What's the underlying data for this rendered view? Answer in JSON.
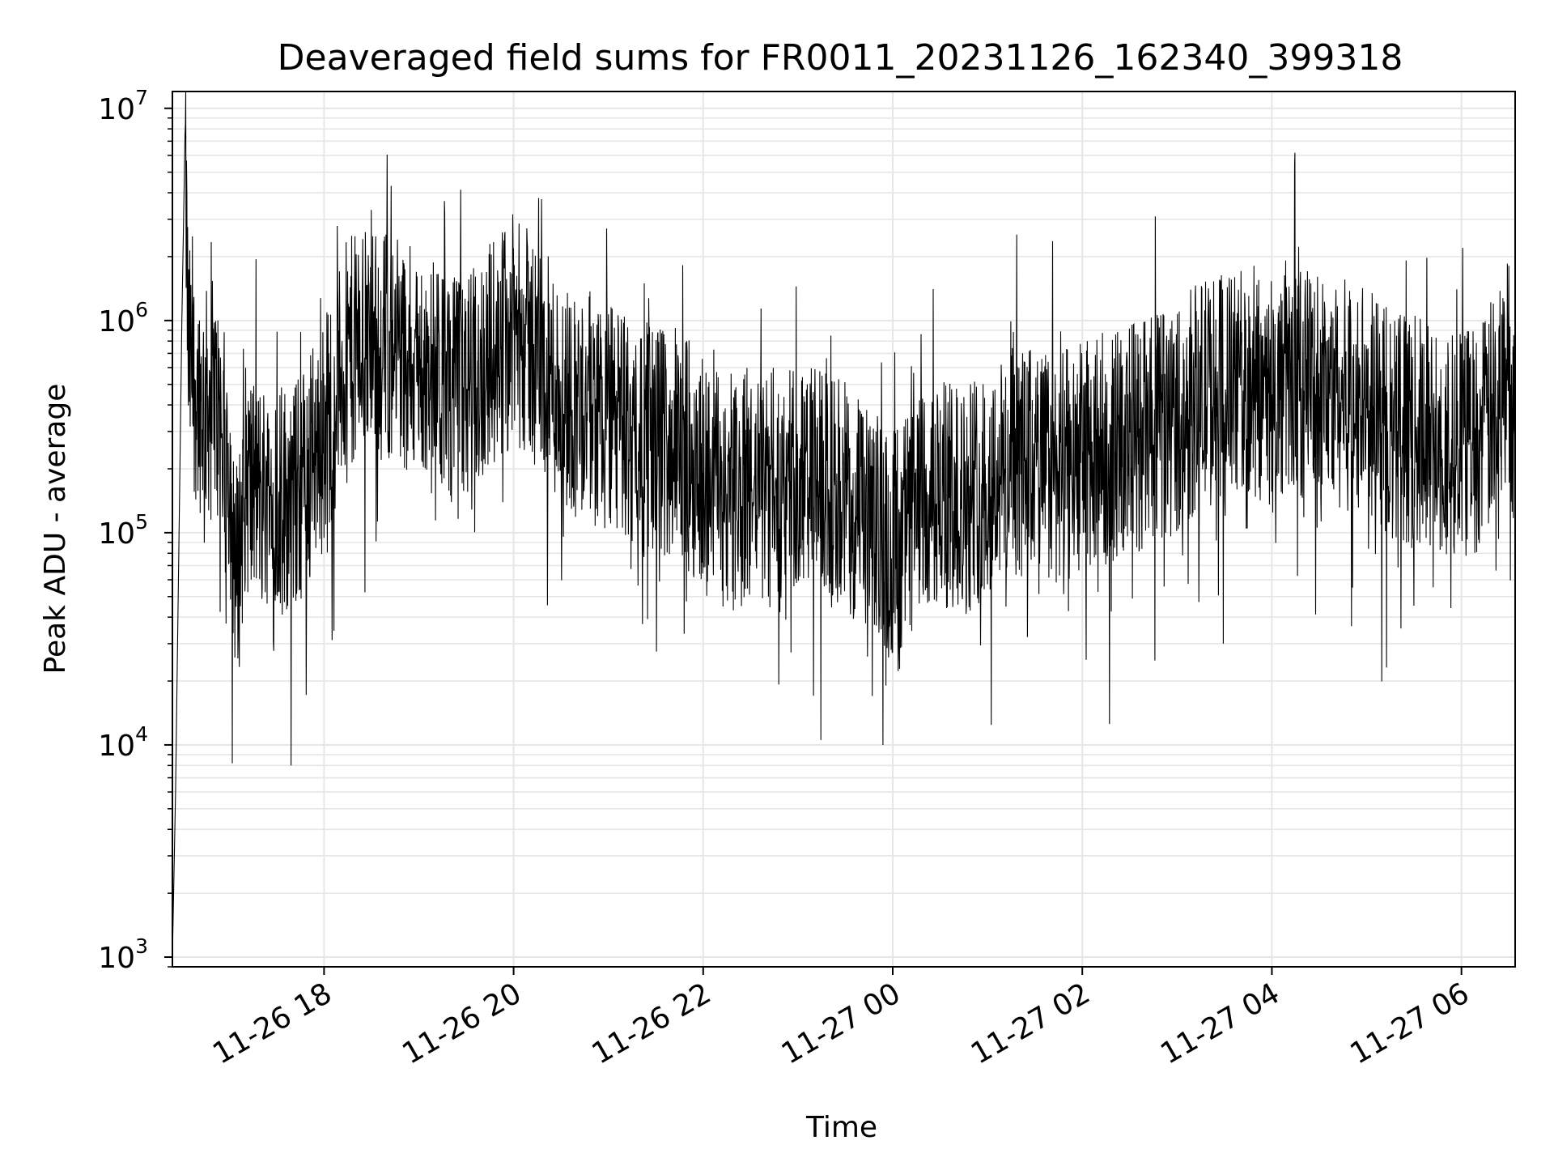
{
  "chart_data": {
    "type": "line",
    "title": "Deaveraged field sums for FR0011_20231126_162340_399318",
    "xlabel": "Time",
    "ylabel": "Peak ADU - average",
    "yscale": "log",
    "ylim": [
      900,
      12000000
    ],
    "xlim": [
      "2023-11-26 16:24",
      "2023-11-27 06:34"
    ],
    "grid": true,
    "line_color": "#000000",
    "grid_color": "#e6e6e6",
    "x_ticks": [
      {
        "value": "2023-11-26 18:00",
        "label": "11-26 18"
      },
      {
        "value": "2023-11-26 20:00",
        "label": "11-26 20"
      },
      {
        "value": "2023-11-26 22:00",
        "label": "11-26 22"
      },
      {
        "value": "2023-11-27 00:00",
        "label": "11-27 00"
      },
      {
        "value": "2023-11-27 02:00",
        "label": "11-27 02"
      },
      {
        "value": "2023-11-27 04:00",
        "label": "11-27 04"
      },
      {
        "value": "2023-11-27 06:00",
        "label": "11-27 06"
      }
    ],
    "y_ticks": [
      {
        "value": 1000,
        "base": "10",
        "exp": "3"
      },
      {
        "value": 10000,
        "base": "10",
        "exp": "4"
      },
      {
        "value": 100000,
        "base": "10",
        "exp": "5"
      },
      {
        "value": 1000000,
        "base": "10",
        "exp": "6"
      },
      {
        "value": 10000000,
        "base": "10",
        "exp": "7"
      }
    ],
    "series": [
      {
        "x": [
          "2023-11-26 16:24",
          "2023-11-26 16:26",
          "2023-11-26 16:28",
          "2023-11-26 16:30",
          "2023-11-26 16:32",
          "2023-11-26 16:34",
          "2023-11-26 16:36",
          "2023-11-26 16:40",
          "2023-11-26 16:45",
          "2023-11-26 16:50",
          "2023-11-26 16:55",
          "2023-11-26 17:00",
          "2023-11-26 17:05",
          "2023-11-26 17:10",
          "2023-11-26 17:20",
          "2023-11-26 17:30",
          "2023-11-26 17:40",
          "2023-11-26 17:50",
          "2023-11-26 18:00",
          "2023-11-26 18:15",
          "2023-11-26 18:30",
          "2023-11-26 18:45",
          "2023-11-26 19:00",
          "2023-11-26 19:15",
          "2023-11-26 19:30",
          "2023-11-26 19:45",
          "2023-11-26 20:00",
          "2023-11-26 20:15",
          "2023-11-26 20:30",
          "2023-11-26 20:45",
          "2023-11-26 21:00",
          "2023-11-26 21:15",
          "2023-11-26 21:30",
          "2023-11-26 21:45",
          "2023-11-26 22:00",
          "2023-11-26 22:15",
          "2023-11-26 22:30",
          "2023-11-26 22:45",
          "2023-11-26 23:00",
          "2023-11-26 23:15",
          "2023-11-26 23:30",
          "2023-11-26 23:45",
          "2023-11-27 00:00",
          "2023-11-27 00:15",
          "2023-11-27 00:30",
          "2023-11-27 00:45",
          "2023-11-27 01:00",
          "2023-11-27 01:15",
          "2023-11-27 01:30",
          "2023-11-27 01:45",
          "2023-11-27 02:00",
          "2023-11-27 02:15",
          "2023-11-27 02:30",
          "2023-11-27 02:45",
          "2023-11-27 03:00",
          "2023-11-27 03:15",
          "2023-11-27 03:30",
          "2023-11-27 03:45",
          "2023-11-27 04:00",
          "2023-11-27 04:15",
          "2023-11-27 04:30",
          "2023-11-27 04:45",
          "2023-11-27 05:00",
          "2023-11-27 05:15",
          "2023-11-27 05:30",
          "2023-11-27 05:45",
          "2023-11-27 06:00",
          "2023-11-27 06:15",
          "2023-11-27 06:30",
          "2023-11-27 06:34"
        ],
        "y": [
          1000,
          6000,
          75000,
          1000000,
          7500000,
          700000,
          600000,
          450000,
          400000,
          450000,
          300000,
          200000,
          60000,
          180000,
          150000,
          160000,
          140000,
          200000,
          300000,
          700000,
          800000,
          750000,
          600000,
          500000,
          450000,
          700000,
          900000,
          700000,
          450000,
          400000,
          350000,
          300000,
          280000,
          250000,
          200000,
          150000,
          150000,
          170000,
          180000,
          170000,
          150000,
          110000,
          90000,
          120000,
          150000,
          140000,
          180000,
          200000,
          220000,
          200000,
          230000,
          250000,
          280000,
          300000,
          350000,
          450000,
          480000,
          500000,
          450000,
          520000,
          500000,
          450000,
          400000,
          350000,
          300000,
          280000,
          260000,
          300000,
          600000,
          300000
        ]
      }
    ]
  }
}
